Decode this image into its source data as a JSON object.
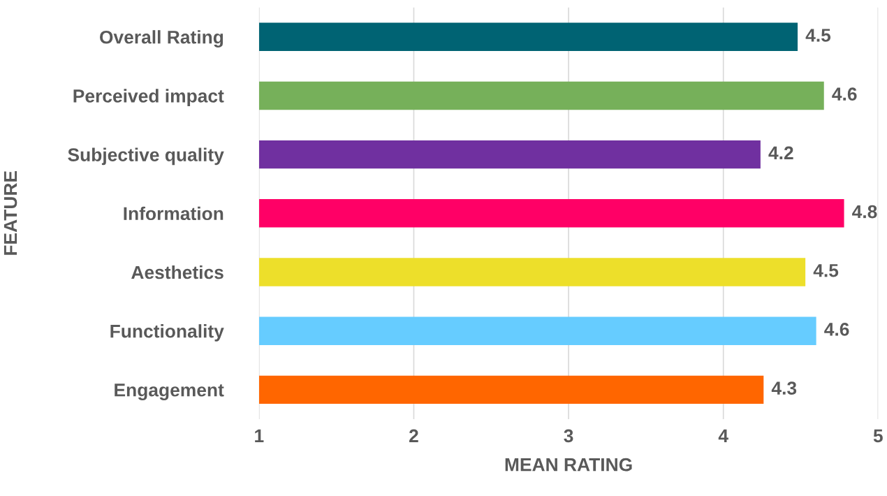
{
  "chart_data": {
    "type": "bar",
    "orientation": "horizontal",
    "xlabel": "MEAN RATING",
    "ylabel": "FEATURE",
    "categories": [
      "Overall Rating",
      "Perceived impact",
      "Subjective quality",
      "Information",
      "Aesthetics",
      "Functionality",
      "Engagement"
    ],
    "values": [
      4.48,
      4.65,
      4.24,
      4.78,
      4.53,
      4.6,
      4.26
    ],
    "value_labels": [
      "4.5",
      "4.6",
      "4.2",
      "4.8",
      "4.5",
      "4.6",
      "4.3"
    ],
    "colors": [
      "#006373",
      "#76b05a",
      "#7030a0",
      "#ff0066",
      "#eddf2a",
      "#66ccff",
      "#ff6600"
    ],
    "xlim": [
      1,
      5
    ],
    "xticks": [
      1,
      2,
      3,
      4,
      5
    ],
    "grid": "x",
    "legend": false
  }
}
